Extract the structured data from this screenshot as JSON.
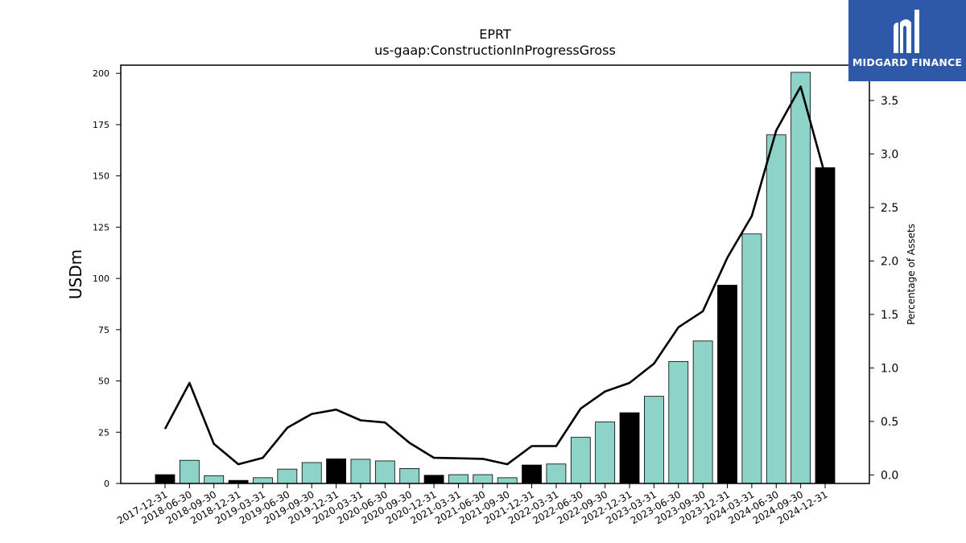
{
  "brand": {
    "name": "MIDGARD FINANCE",
    "bg_color": "#2d59a8",
    "text_color": "#ffffff"
  },
  "chart_data": {
    "type": "bar",
    "title": "EPRT",
    "subtitle": "us-gaap:ConstructionInProgressGross",
    "ylabel": "USDm",
    "y2label": "Percentage of Assets",
    "ylim": [
      0,
      204
    ],
    "y2lim": [
      -0.08,
      3.83
    ],
    "yticks": [
      0,
      25,
      50,
      75,
      100,
      125,
      150,
      175,
      200
    ],
    "y2ticks": [
      "0.0",
      "0.5",
      "1.0",
      "1.5",
      "2.0",
      "2.5",
      "3.0",
      "3.5"
    ],
    "grid": false,
    "legend": "none",
    "colors": {
      "annual_bar": "#000000",
      "quarter_bar": "#8dd3c7",
      "line": "#000000"
    },
    "categories": [
      "2017-12-31",
      "2018-06-30",
      "2018-09-30",
      "2018-12-31",
      "2019-03-31",
      "2019-06-30",
      "2019-09-30",
      "2019-12-31",
      "2020-03-31",
      "2020-06-30",
      "2020-09-30",
      "2020-12-31",
      "2021-03-31",
      "2021-06-30",
      "2021-09-30",
      "2021-12-31",
      "2022-03-31",
      "2022-06-30",
      "2022-09-30",
      "2022-12-31",
      "2023-03-31",
      "2023-06-30",
      "2023-09-30",
      "2023-12-31",
      "2024-03-31",
      "2024-06-30",
      "2024-09-30",
      "2024-12-31"
    ],
    "series": [
      {
        "type": "bar",
        "axis": "left",
        "values": [
          4.3,
          11.3,
          3.8,
          1.5,
          2.8,
          7.0,
          10.2,
          12.0,
          11.8,
          11.0,
          7.3,
          4.0,
          4.3,
          4.3,
          2.8,
          9.0,
          9.5,
          22.5,
          30.0,
          34.5,
          42.5,
          59.5,
          69.5,
          96.7,
          121.7,
          170.0,
          200.5,
          154.0
        ],
        "annual": [
          true,
          false,
          false,
          true,
          false,
          false,
          false,
          true,
          false,
          false,
          false,
          true,
          false,
          false,
          false,
          true,
          false,
          false,
          false,
          true,
          false,
          false,
          false,
          true,
          false,
          false,
          false,
          true
        ]
      },
      {
        "type": "line",
        "axis": "right",
        "values": [
          0.43,
          0.86,
          0.29,
          0.1,
          0.16,
          0.44,
          0.57,
          0.61,
          0.51,
          0.49,
          0.3,
          0.16,
          0.155,
          0.15,
          0.1,
          0.27,
          0.27,
          0.62,
          0.78,
          0.86,
          1.04,
          1.38,
          1.53,
          2.03,
          2.42,
          3.22,
          3.63,
          2.8
        ]
      }
    ]
  }
}
